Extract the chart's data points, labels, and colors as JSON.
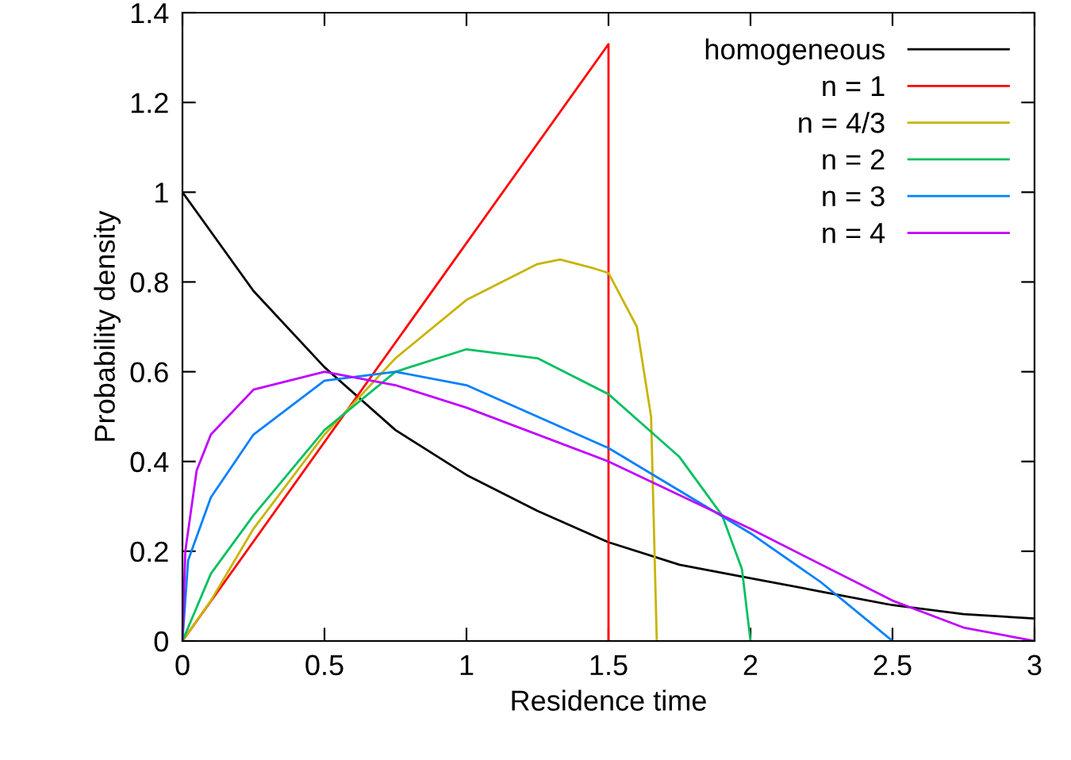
{
  "chart_data": {
    "type": "line",
    "xlabel": "Residence time",
    "ylabel": "Probability density",
    "xlim": [
      0,
      3
    ],
    "ylim": [
      0,
      1.4
    ],
    "xticks": [
      0,
      0.5,
      1,
      1.5,
      2,
      2.5,
      3
    ],
    "yticks": [
      0,
      0.2,
      0.4,
      0.6,
      0.8,
      1,
      1.2,
      1.4
    ],
    "grid": false,
    "legend": "top right",
    "marker": "none",
    "line_style": "solid",
    "series": [
      {
        "name": "homogeneous",
        "color": "#000000",
        "x": [
          0,
          0.25,
          0.5,
          0.75,
          1,
          1.25,
          1.5,
          1.75,
          2,
          2.25,
          2.5,
          2.75,
          3
        ],
        "values": [
          1,
          0.78,
          0.61,
          0.47,
          0.37,
          0.29,
          0.22,
          0.17,
          0.14,
          0.11,
          0.08,
          0.06,
          0.05
        ]
      },
      {
        "name": "n = 1",
        "color": "#ff0000",
        "x": [
          0,
          1.5,
          1.5
        ],
        "values": [
          0,
          1.33,
          0
        ]
      },
      {
        "name": "n = 4/3",
        "color": "#c8b400",
        "x": [
          0,
          0.1,
          0.25,
          0.5,
          0.75,
          1,
          1.25,
          1.33,
          1.45,
          1.5,
          1.6,
          1.65,
          1.67
        ],
        "values": [
          0,
          0.09,
          0.25,
          0.46,
          0.63,
          0.76,
          0.84,
          0.85,
          0.83,
          0.82,
          0.7,
          0.5,
          0
        ]
      },
      {
        "name": "n = 2",
        "color": "#00c060",
        "x": [
          0,
          0.1,
          0.25,
          0.5,
          0.75,
          1,
          1.25,
          1.5,
          1.75,
          1.9,
          1.97,
          2
        ],
        "values": [
          0,
          0.15,
          0.28,
          0.47,
          0.6,
          0.65,
          0.63,
          0.55,
          0.41,
          0.28,
          0.16,
          0
        ]
      },
      {
        "name": "n = 3",
        "color": "#0080ff",
        "x": [
          0,
          0.02,
          0.1,
          0.25,
          0.5,
          0.75,
          1,
          1.5,
          2,
          2.25,
          2.5
        ],
        "values": [
          0,
          0.18,
          0.32,
          0.46,
          0.58,
          0.6,
          0.57,
          0.43,
          0.24,
          0.13,
          0
        ]
      },
      {
        "name": "n = 4",
        "color": "#c000ff",
        "x": [
          0,
          0.01,
          0.05,
          0.1,
          0.25,
          0.5,
          0.75,
          1,
          1.5,
          2,
          2.5,
          2.75,
          3
        ],
        "values": [
          0,
          0.2,
          0.38,
          0.46,
          0.56,
          0.6,
          0.57,
          0.52,
          0.4,
          0.25,
          0.09,
          0.03,
          0
        ]
      }
    ]
  }
}
